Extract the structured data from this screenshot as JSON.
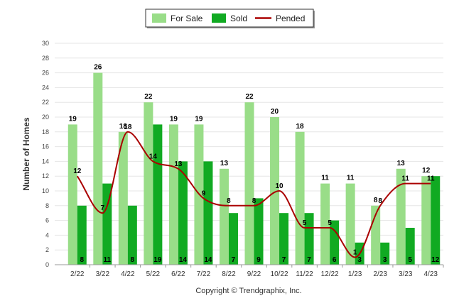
{
  "chart_data": {
    "type": "bar",
    "categories": [
      "2/22",
      "3/22",
      "4/22",
      "5/22",
      "6/22",
      "7/22",
      "8/22",
      "9/22",
      "10/22",
      "11/22",
      "12/22",
      "1/23",
      "2/23",
      "3/23",
      "4/23"
    ],
    "series": [
      {
        "name": "For Sale",
        "kind": "bar",
        "color": "#99dd88",
        "values": [
          19,
          26,
          18,
          22,
          19,
          19,
          13,
          22,
          20,
          18,
          11,
          11,
          8,
          13,
          12
        ]
      },
      {
        "name": "Sold",
        "kind": "bar",
        "color": "#11aa22",
        "values": [
          8,
          11,
          8,
          19,
          14,
          14,
          7,
          9,
          7,
          7,
          6,
          3,
          3,
          5,
          12
        ]
      },
      {
        "name": "Pended",
        "kind": "line",
        "color": "#aa0000",
        "values": [
          12,
          7,
          18,
          14,
          13,
          9,
          8,
          8,
          10,
          5,
          5,
          1,
          8,
          11,
          11
        ]
      }
    ],
    "ylabel": "Number of Homes",
    "xlabel": "",
    "ylim": [
      0,
      30
    ],
    "yticks": [
      0,
      2,
      4,
      6,
      8,
      10,
      12,
      14,
      16,
      18,
      20,
      22,
      24,
      26,
      28,
      30
    ],
    "grid": true,
    "legend_position": "top-center"
  },
  "footer": {
    "copyright": "Copyright © Trendgraphix, Inc."
  }
}
